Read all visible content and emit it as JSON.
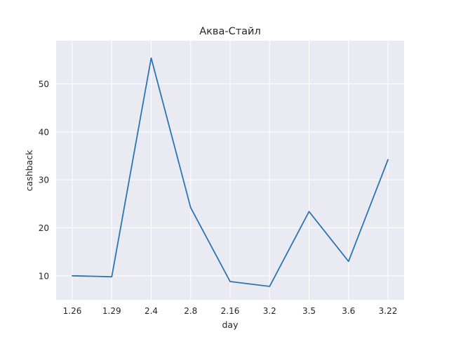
{
  "chart_data": {
    "type": "line",
    "title": "Аква-Стайл",
    "xlabel": "day",
    "ylabel": "cashback",
    "categories": [
      "1.26",
      "1.29",
      "2.4",
      "2.8",
      "2.16",
      "3.2",
      "3.5",
      "3.6",
      "3.22"
    ],
    "series": [
      {
        "values": [
          10.0,
          9.8,
          55.4,
          24.2,
          8.8,
          7.8,
          23.4,
          13.0,
          34.2
        ]
      }
    ],
    "ylim": [
      5.0,
      59.0
    ],
    "yticks": [
      10,
      20,
      30,
      40,
      50
    ],
    "grid": true,
    "colors": {
      "line": "#2a75b3",
      "plot_background": "#eaeaf2",
      "grid": "#ffffff"
    }
  }
}
